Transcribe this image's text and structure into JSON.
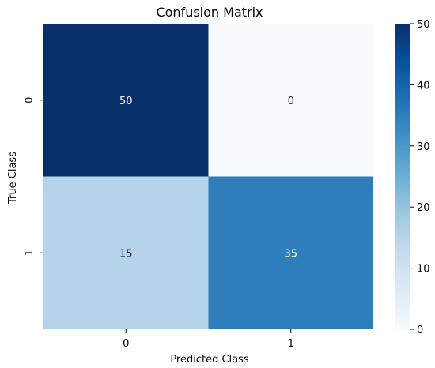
{
  "chart_data": {
    "type": "heatmap",
    "title": "Confusion Matrix",
    "xlabel": "Predicted Class",
    "ylabel": "True Class",
    "x_categories": [
      "0",
      "1"
    ],
    "y_categories": [
      "0",
      "1"
    ],
    "values": [
      [
        50,
        0
      ],
      [
        15,
        35
      ]
    ],
    "colorbar": {
      "min": 0,
      "max": 50,
      "ticks": [
        "0",
        "10",
        "20",
        "30",
        "40",
        "50"
      ],
      "colormap": "Blues"
    },
    "annotations": true,
    "grid": false
  }
}
